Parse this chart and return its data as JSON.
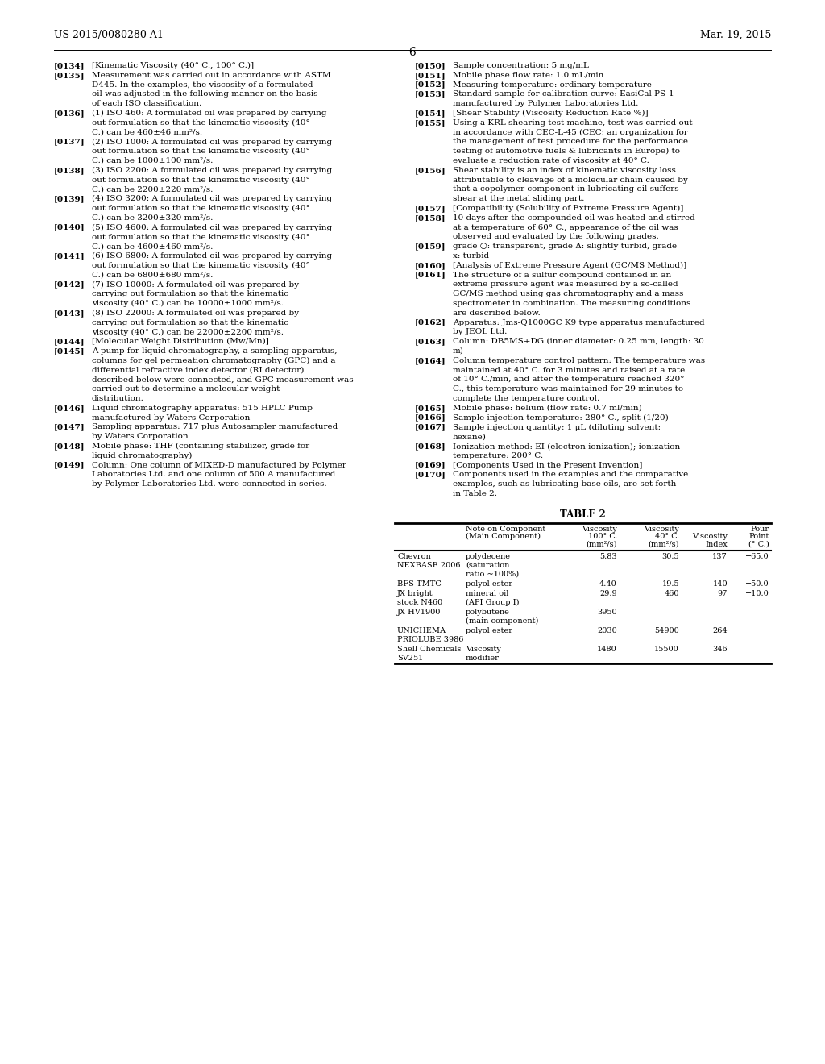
{
  "background_color": "#ffffff",
  "header_left": "US 2015/0080280 A1",
  "header_right": "Mar. 19, 2015",
  "page_number": "6",
  "text_color": "#000000",
  "left_paragraphs": [
    {
      "tag": "[0134]",
      "text": "[Kinematic Viscosity (40° C., 100° C.)]"
    },
    {
      "tag": "[0135]",
      "text": "Measurement was carried out in accordance with ASTM D445. In the examples, the viscosity of a formulated oil was adjusted in the following manner on the basis of each ISO classification."
    },
    {
      "tag": "[0136]",
      "text": "(1) ISO 460: A formulated oil was prepared by carrying out formulation so that the kinematic viscosity (40° C.) can be 460±46 mm²/s."
    },
    {
      "tag": "[0137]",
      "text": "(2) ISO 1000: A formulated oil was prepared by carrying out formulation so that the kinematic viscosity (40° C.) can be 1000±100 mm²/s."
    },
    {
      "tag": "[0138]",
      "text": "(3) ISO 2200: A formulated oil was prepared by carrying out formulation so that the kinematic viscosity (40° C.) can be 2200±220 mm²/s."
    },
    {
      "tag": "[0139]",
      "text": "(4) ISO 3200: A formulated oil was prepared by carrying out formulation so that the kinematic viscosity (40° C.) can be 3200±320 mm²/s."
    },
    {
      "tag": "[0140]",
      "text": "(5) ISO 4600: A formulated oil was prepared by carrying out formulation so that the kinematic viscosity (40° C.) can be 4600±460 mm²/s."
    },
    {
      "tag": "[0141]",
      "text": "(6) ISO 6800: A formulated oil was prepared by carrying out formulation so that the kinematic viscosity (40° C.) can be 6800±680 mm²/s."
    },
    {
      "tag": "[0142]",
      "text": "(7) ISO 10000: A formulated oil was prepared by carrying out formulation so that the kinematic viscosity (40° C.) can be 10000±1000 mm²/s."
    },
    {
      "tag": "[0143]",
      "text": "(8) ISO 22000: A formulated oil was prepared by carrying out formulation so that the kinematic viscosity (40° C.) can be 22000±2200 mm²/s."
    },
    {
      "tag": "[0144]",
      "text": "[Molecular Weight Distribution (Mw/Mn)]"
    },
    {
      "tag": "[0145]",
      "text": "A pump for liquid chromatography, a sampling apparatus, columns for gel permeation chromatography (GPC) and a differential refractive index detector (RI detector) described below were connected, and GPC measurement was carried out to determine a molecular weight distribution."
    },
    {
      "tag": "[0146]",
      "text": "Liquid chromatography apparatus: 515 HPLC Pump manufactured by Waters Corporation"
    },
    {
      "tag": "[0147]",
      "text": "Sampling apparatus: 717 plus Autosampler manufactured by Waters Corporation"
    },
    {
      "tag": "[0148]",
      "text": "Mobile phase: THF (containing stabilizer, grade for liquid chromatography)"
    },
    {
      "tag": "[0149]",
      "text": "Column: One column of MIXED-D manufactured by Polymer Laboratories Ltd. and one column of 500 A manufactured by Polymer Laboratories Ltd. were connected in series."
    }
  ],
  "right_paragraphs": [
    {
      "tag": "[0150]",
      "text": "Sample concentration: 5 mg/mL"
    },
    {
      "tag": "[0151]",
      "text": "Mobile phase flow rate: 1.0 mL/min"
    },
    {
      "tag": "[0152]",
      "text": "Measuring temperature: ordinary temperature"
    },
    {
      "tag": "[0153]",
      "text": "Standard sample for calibration curve: EasiCal PS-1 manufactured by Polymer Laboratories Ltd."
    },
    {
      "tag": "[0154]",
      "text": "[Shear Stability (Viscosity Reduction Rate %)]"
    },
    {
      "tag": "[0155]",
      "text": "Using a KRL shearing test machine, test was carried out in accordance with CEC-L-45 (CEC: an organization for the management of test procedure for the performance testing of automotive fuels & lubricants in Europe) to evaluate a reduction rate of viscosity at 40° C."
    },
    {
      "tag": "[0156]",
      "text": "Shear stability is an index of kinematic viscosity loss attributable to cleavage of a molecular chain caused by that a copolymer component in lubricating oil suffers shear at the metal sliding part."
    },
    {
      "tag": "[0157]",
      "text": "[Compatibility (Solubility of Extreme Pressure Agent)]"
    },
    {
      "tag": "[0158]",
      "text": "10 days after the compounded oil was heated and stirred at a temperature of 60° C., appearance of the oil was observed and evaluated by the following grades."
    },
    {
      "tag": "[0159]",
      "text": "grade ○: transparent, grade Δ: slightly turbid, grade x: turbid"
    },
    {
      "tag": "[0160]",
      "text": "[Analysis of Extreme Pressure Agent (GC/MS Method)]"
    },
    {
      "tag": "[0161]",
      "text": "The structure of a sulfur compound contained in an extreme pressure agent was measured by a so-called GC/MS method using gas chromatography and a mass spectrometer in combination. The measuring conditions are described below."
    },
    {
      "tag": "[0162]",
      "text": "Apparatus: Jms-Q1000GC K9 type apparatus manufactured by JEOL Ltd."
    },
    {
      "tag": "[0163]",
      "text": "Column: DB5MS+DG (inner diameter: 0.25 mm, length: 30 m)"
    },
    {
      "tag": "[0164]",
      "text": "Column temperature control pattern: The temperature was maintained at 40° C. for 3 minutes and raised at a rate of 10° C./min, and after the temperature reached 320° C., this temperature was maintained for 29 minutes to complete the temperature control."
    },
    {
      "tag": "[0165]",
      "text": "Mobile phase: helium (flow rate: 0.7 ml/min)"
    },
    {
      "tag": "[0166]",
      "text": "Sample injection temperature: 280° C., split (1/20)"
    },
    {
      "tag": "[0167]",
      "text": "Sample injection quantity: 1 μL (diluting solvent: hexane)"
    },
    {
      "tag": "[0168]",
      "text": "Ionization method: EI (electron ionization); ionization temperature: 200° C."
    },
    {
      "tag": "[0169]",
      "text": "[Components Used in the Present Invention]"
    },
    {
      "tag": "[0170]",
      "text": "Components used in the examples and the comparative examples, such as lubricating base oils, are set forth in Table 2."
    }
  ],
  "table_title": "TABLE 2",
  "table_col_headers_line1": [
    "",
    "Note on Component",
    "Viscosity",
    "Viscosity",
    "",
    "Pour"
  ],
  "table_col_headers_line2": [
    "",
    "(Main Component)",
    "100° C.",
    "40° C.",
    "Viscosity",
    "Point"
  ],
  "table_col_headers_line3": [
    "",
    "",
    "(mm²/s)",
    "(mm²/s)",
    "Index",
    "(° C.)"
  ],
  "table_rows": [
    [
      "Chevron",
      "polydecene",
      "5.83",
      "30.5",
      "137",
      "−65.0"
    ],
    [
      "NEXBASE 2006",
      "(saturation",
      "",
      "",
      "",
      ""
    ],
    [
      "",
      "ratio ~100%)",
      "",
      "",
      "",
      ""
    ],
    [
      "BFS TMTC",
      "polyol ester",
      "4.40",
      "19.5",
      "140",
      "−50.0"
    ],
    [
      "JX bright",
      "mineral oil",
      "29.9",
      "460",
      "97",
      "−10.0"
    ],
    [
      "stock N460",
      "(API Group I)",
      "",
      "",
      "",
      ""
    ],
    [
      "JX HV1900",
      "polybutene",
      "3950",
      "",
      "",
      ""
    ],
    [
      "",
      "(main component)",
      "",
      "",
      "",
      ""
    ],
    [
      "UNICHEMA",
      "polyol ester",
      "2030",
      "54900",
      "264",
      ""
    ],
    [
      "PRIOLUBE 3986",
      "",
      "",
      "",
      "",
      ""
    ],
    [
      "Shell Chemicals",
      "Viscosity",
      "1480",
      "15500",
      "346",
      ""
    ],
    [
      "SV251",
      "modifier",
      "",
      "",
      "",
      ""
    ]
  ]
}
